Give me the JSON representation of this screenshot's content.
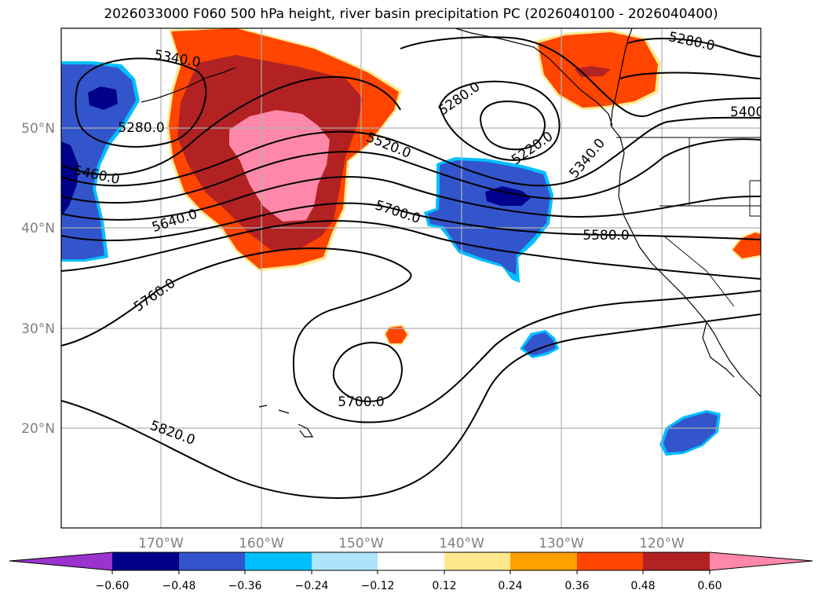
{
  "title": "2026033000 F060 500 hPa height, river basin precipitation PC (2026040100 - 2026040400)",
  "map": {
    "longitude_labels": [
      "170°W",
      "160°W",
      "150°W",
      "140°W",
      "130°W",
      "120°W"
    ],
    "latitude_labels": [
      "50°N",
      "40°N",
      "30°N",
      "20°N"
    ],
    "contour_labels": [
      "5340.0",
      "5280.0",
      "5460.0",
      "5640.0",
      "5760.0",
      "5820.0",
      "5520.0",
      "5700.0",
      "5280.0",
      "5220.0",
      "5340.0",
      "5580.0",
      "5700.0",
      "5280.0",
      "5400"
    ]
  },
  "colorbar": {
    "tick_labels": [
      "−0.60",
      "−0.48",
      "−0.36",
      "−0.24",
      "−0.12",
      "0.12",
      "0.24",
      "0.36",
      "0.48",
      "0.60"
    ],
    "colors": {
      "lt_-0.60": "#9933cc",
      "-0.60_-0.48": "#00008b",
      "-0.48_-0.36": "#3355cc",
      "-0.36_-0.24": "#00bfff",
      "-0.24_-0.12": "#aee4fa",
      "-0.12_0.12": "#ffffff",
      "0.12_0.24": "#ffe88c",
      "0.24_0.36": "#ffa000",
      "0.36_0.48": "#ff4500",
      "0.48_0.60": "#b22222",
      "gt_0.60": "#ff88aa"
    }
  }
}
